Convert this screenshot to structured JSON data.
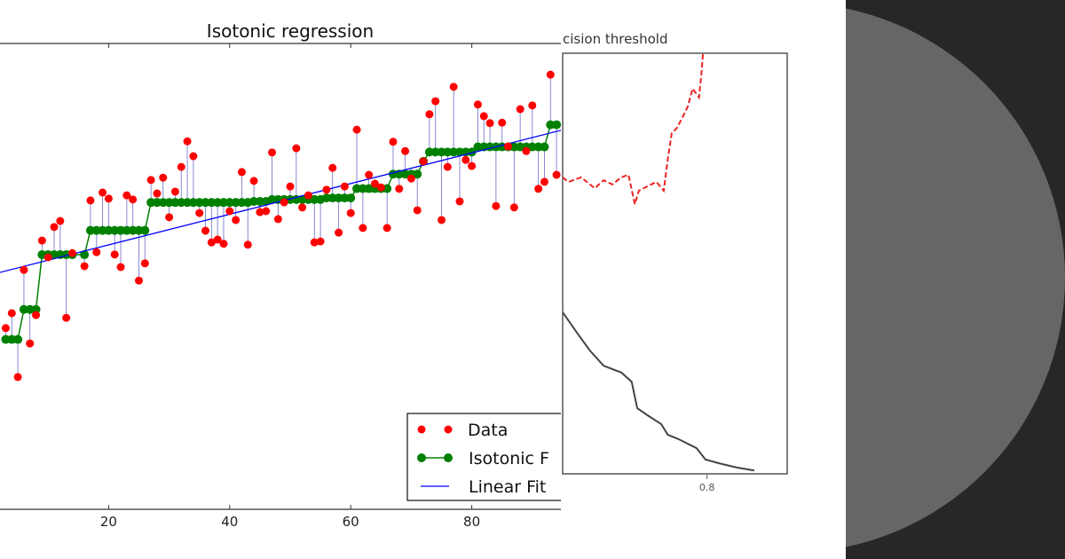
{
  "chart_data": [
    {
      "type": "scatter",
      "title": "Isotonic regression",
      "xlabel": "",
      "ylabel": "",
      "x_ticks": [
        "20",
        "40",
        "60",
        "80"
      ],
      "ylim": [
        0,
        100
      ],
      "grid": false,
      "legend": {
        "placement": "bottom-right",
        "entries": [
          "Data",
          "Isotonic F",
          "Linear Fit"
        ]
      },
      "colors": {
        "data": "#ff0000",
        "isotonic": "#008000",
        "linear": "#0000ff",
        "residual": "#7b7bd0"
      },
      "series": [
        {
          "name": "Data",
          "x": [
            3,
            4,
            5,
            6,
            7,
            8,
            9,
            10,
            11,
            12,
            13,
            14,
            16,
            17,
            18,
            19,
            20,
            21,
            22,
            23,
            24,
            25,
            26,
            27,
            28,
            29,
            30,
            31,
            32,
            33,
            34,
            35,
            36,
            37,
            38,
            39,
            40,
            41,
            42,
            43,
            44,
            45,
            46,
            47,
            48,
            49,
            50,
            51,
            52,
            53,
            54,
            55,
            56,
            57,
            58,
            59,
            60,
            61,
            62,
            63,
            64,
            65,
            66,
            67,
            68,
            69,
            70,
            71,
            72,
            73,
            74,
            75,
            76,
            77,
            78,
            79,
            80,
            81,
            82,
            83,
            84,
            85,
            86,
            87,
            88,
            89,
            90,
            91,
            92,
            93,
            94
          ],
          "y": [
            38.9,
            42.1,
            28.4,
            51.4,
            35.6,
            41.7,
            57.7,
            54.1,
            60.6,
            61.9,
            41.1,
            55.0,
            52.2,
            66.3,
            55.2,
            68.0,
            66.7,
            54.7,
            52.0,
            67.4,
            66.5,
            49.1,
            52.8,
            70.7,
            67.8,
            71.2,
            62.7,
            68.2,
            73.5,
            79.0,
            75.8,
            63.6,
            59.8,
            57.3,
            57.9,
            57.0,
            64.0,
            62.1,
            72.4,
            56.8,
            70.5,
            63.8,
            64.0,
            76.6,
            62.3,
            65.9,
            69.3,
            77.5,
            64.8,
            67.4,
            57.3,
            57.5,
            68.6,
            73.3,
            59.4,
            69.3,
            63.6,
            81.5,
            60.4,
            71.8,
            69.9,
            69.1,
            60.4,
            78.9,
            68.8,
            76.9,
            71.0,
            64.2,
            74.7,
            84.8,
            87.6,
            62.1,
            73.5,
            90.7,
            66.1,
            75.0,
            73.7,
            86.9,
            84.4,
            82.9,
            65.1,
            83.0,
            77.9,
            64.8,
            85.9,
            76.9,
            86.7,
            68.8,
            70.3,
            93.3,
            71.8
          ]
        }
      ]
    },
    {
      "type": "line",
      "title": "cision threshold",
      "x_ticks": [
        "0.8"
      ],
      "xlim": [
        0.62,
        0.9
      ],
      "ylim": [
        0,
        1
      ],
      "grid": false,
      "series": [
        {
          "style": "dashed",
          "color": "#ee2222",
          "x": [
            0.62,
            0.627,
            0.643,
            0.66,
            0.671,
            0.682,
            0.693,
            0.702,
            0.71,
            0.715,
            0.726,
            0.737,
            0.746,
            0.751,
            0.756,
            0.762,
            0.768,
            0.776,
            0.782,
            0.79,
            0.793,
            0.795
          ],
          "y": [
            0.705,
            0.694,
            0.705,
            0.679,
            0.698,
            0.688,
            0.705,
            0.711,
            0.641,
            0.673,
            0.684,
            0.694,
            0.673,
            0.747,
            0.81,
            0.821,
            0.842,
            0.873,
            0.916,
            0.895,
            0.95,
            1.0
          ]
        },
        {
          "style": "solid",
          "color": "#444444",
          "x": [
            0.62,
            0.638,
            0.654,
            0.671,
            0.693,
            0.706,
            0.713,
            0.726,
            0.743,
            0.751,
            0.765,
            0.787,
            0.798,
            0.815,
            0.837,
            0.859
          ],
          "y": [
            0.384,
            0.335,
            0.293,
            0.257,
            0.241,
            0.219,
            0.156,
            0.139,
            0.118,
            0.093,
            0.082,
            0.061,
            0.034,
            0.025,
            0.015,
            0.008
          ]
        }
      ]
    }
  ],
  "decor": {
    "dark_panel": "#272727",
    "circle": "#666666"
  }
}
